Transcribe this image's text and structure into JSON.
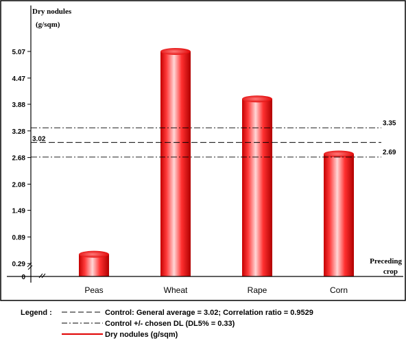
{
  "chart_data": {
    "type": "bar",
    "categories": [
      "Peas",
      "Wheat",
      "Rape",
      "Corn"
    ],
    "series": [
      {
        "name": "Dry nodules (g/sqm)",
        "values": [
          0.5,
          5.07,
          4.0,
          2.76
        ]
      }
    ],
    "y_ticks": [
      "5.07",
      "4.47",
      "3.88",
      "3.28",
      "2.68",
      "2.08",
      "1.49",
      "0.89",
      "0.29",
      "0"
    ],
    "y_tick_values": [
      5.07,
      4.47,
      3.88,
      3.28,
      2.68,
      2.08,
      1.49,
      0.89,
      0.29,
      0
    ],
    "ylim": [
      0,
      5.6
    ],
    "ylabel_line1": "Dry nodules",
    "ylabel_line2": "(g/sqm)",
    "xlabel_line1": "Preceding",
    "xlabel_line2": "crop",
    "reference_lines": [
      {
        "value": 3.35,
        "style": "dash-dot",
        "label": "3.35",
        "label_side": "right"
      },
      {
        "value": 3.02,
        "style": "dashed",
        "label": "3.02",
        "label_side": "left"
      },
      {
        "value": 2.69,
        "style": "dash-dot",
        "label": "2.69",
        "label_side": "right"
      }
    ],
    "bar_color": "#ff2020",
    "grid": false
  },
  "legend": {
    "title": "Legend :",
    "items": [
      {
        "style": "dashed",
        "text": "Control: General average = 3.02; Correlation ratio = 0.9529"
      },
      {
        "style": "dash-dot",
        "text": "Control +/- chosen DL (DL5% = 0.33)"
      },
      {
        "style": "solid-red",
        "text": "Dry nodules (g/sqm)"
      }
    ]
  }
}
